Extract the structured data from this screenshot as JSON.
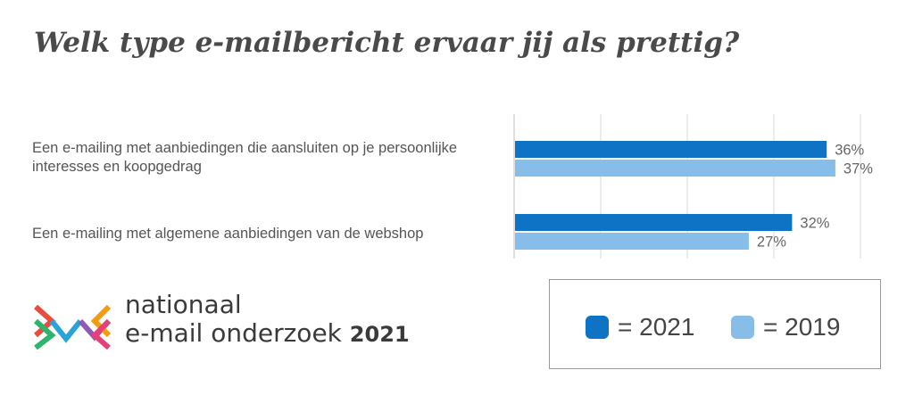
{
  "title": "Welk type e-mailbericht ervaar jij als prettig?",
  "colors": {
    "y2021": "#0f73c5",
    "y2019": "#86bde9",
    "grid": "#d9d9d9"
  },
  "chart_data": {
    "type": "bar",
    "orientation": "horizontal",
    "categories": [
      "Een e-mailing met aanbiedingen die aansluiten op je persoonlijke interesses en koopgedrag",
      "Een e-mailing met algemene aanbiedingen van de webshop"
    ],
    "series": [
      {
        "name": "2021",
        "values": [
          36,
          32
        ],
        "labels": [
          "36%",
          "32%"
        ]
      },
      {
        "name": "2019",
        "values": [
          37,
          27
        ],
        "labels": [
          "37%",
          "27%"
        ]
      }
    ],
    "xlim": [
      0,
      40
    ],
    "grid": true,
    "legend": "bottom-right"
  },
  "legend": [
    {
      "text": "= 2021"
    },
    {
      "text": "= 2019"
    }
  ],
  "brand": {
    "line1": "nationaal",
    "line2": "e-mail onderzoek",
    "year": "2021"
  }
}
